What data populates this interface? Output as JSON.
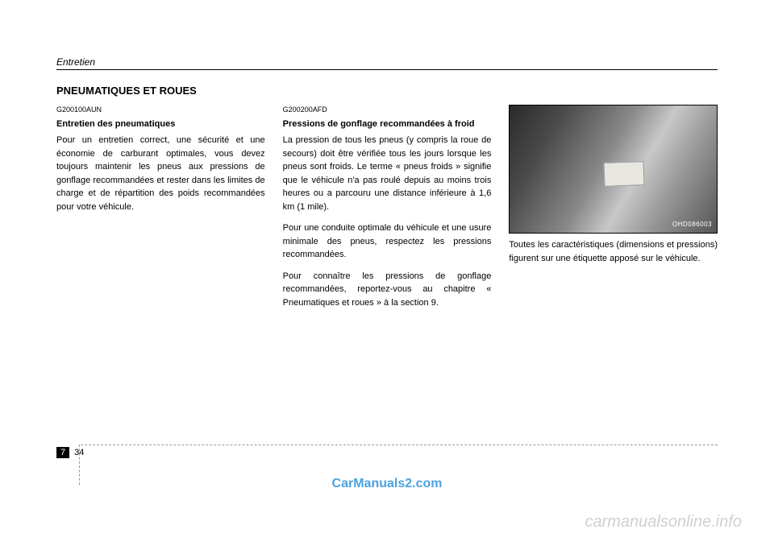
{
  "header": {
    "title": "Entretien"
  },
  "section_title": "PNEUMATIQUES ET ROUES",
  "col1": {
    "code": "G200100AUN",
    "subhead": "Entretien des pneumatiques",
    "p1": "Pour un entretien correct, une sécurité et une économie de carburant optimales, vous devez toujours maintenir les pneus aux pressions de gonflage recommandées et rester dans les limites de charge et de répartition des poids recommandées pour votre véhicule."
  },
  "col2": {
    "code": "G200200AFD",
    "subhead": "Pressions de gonflage recommandées à froid",
    "p1": "La pression de tous les pneus (y compris la roue de secours) doit être vérifiée tous les jours lorsque les pneus sont froids. Le terme « pneus froids » signifie que le véhicule n'a pas roulé depuis au moins trois heures ou a parcouru une distance inférieure à 1,6 km (1 mile).",
    "p2": "Pour une conduite optimale du véhicule et une usure minimale des pneus, respectez les pressions recommandées.",
    "p3": "Pour connaître les pressions de gonflage recommandées, reportez-vous au chapitre « Pneumatiques et roues » à la section 9."
  },
  "col3": {
    "photo_code": "OHD086003",
    "p1": "Toutes les caractéristiques (dimensions et pressions) figurent sur une étiquette apposé sur le véhicule."
  },
  "page_num": {
    "chapter": "7",
    "page": "34"
  },
  "watermarks": {
    "w1": "CarManuals2.com",
    "w2": "carmanualsonline.info"
  }
}
